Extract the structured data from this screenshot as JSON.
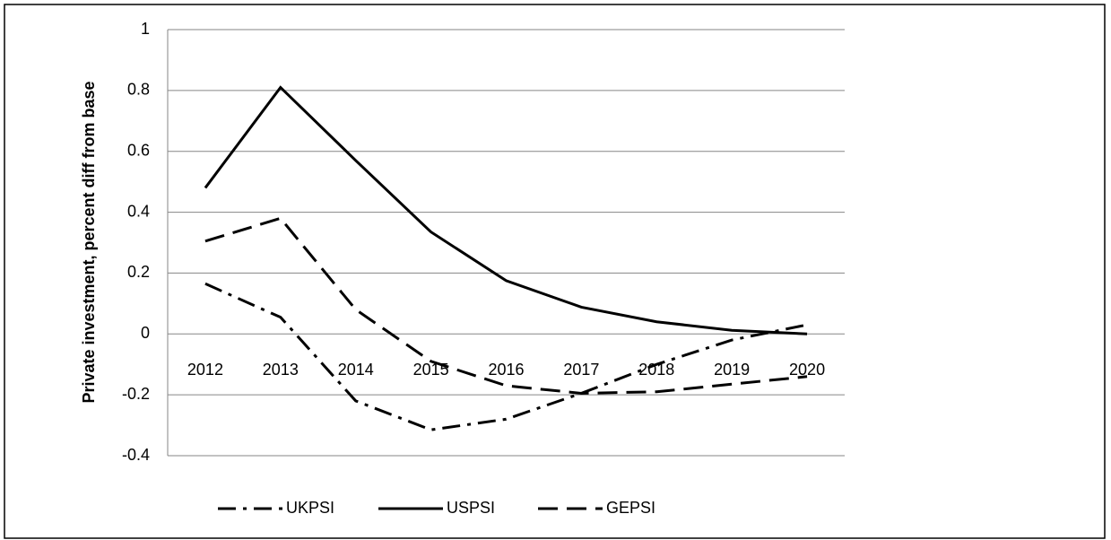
{
  "chart_data": {
    "type": "line",
    "y_label": "Private investment, percent diff from base",
    "categories": [
      "2012",
      "2013",
      "2014",
      "2015",
      "2016",
      "2017",
      "2018",
      "2019",
      "2020"
    ],
    "series": [
      {
        "name": "UKPSI",
        "color": "#000000",
        "dash": "dashdot",
        "values": [
          0.165,
          0.055,
          -0.22,
          -0.315,
          -0.28,
          -0.195,
          -0.1,
          -0.02,
          0.03
        ]
      },
      {
        "name": "USPSI",
        "color": "#000000",
        "dash": "solid",
        "values": [
          0.48,
          0.81,
          0.57,
          0.335,
          0.175,
          0.088,
          0.04,
          0.012,
          0.0
        ]
      },
      {
        "name": "GEPSI",
        "color": "#000000",
        "dash": "dashed",
        "values": [
          0.305,
          0.38,
          0.08,
          -0.09,
          -0.17,
          -0.195,
          -0.19,
          -0.165,
          -0.14
        ]
      }
    ],
    "ylim": [
      -0.4,
      1
    ],
    "yticks": [
      -0.4,
      -0.2,
      0,
      0.2,
      0.4,
      0.6,
      0.8,
      1
    ],
    "grid": true,
    "legend": "bottom"
  }
}
